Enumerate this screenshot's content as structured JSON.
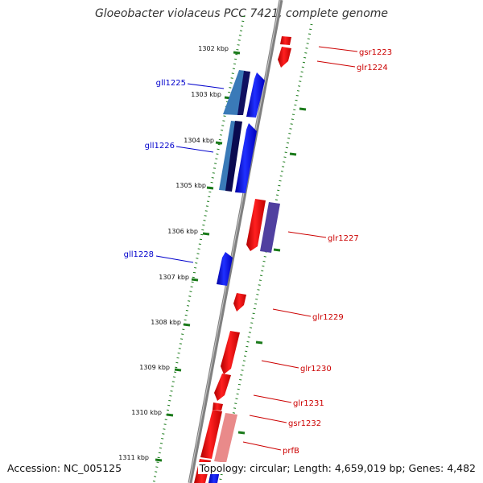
{
  "title": "Gloeobacter violaceus PCC 7421, complete genome",
  "footer": {
    "accession_label": "Accession:",
    "accession": "NC_005125",
    "topology": "Topology: circular",
    "length": "Length: 4,659,019 bp",
    "genes": "Genes: 4,482"
  },
  "colors": {
    "backbone": "#808080",
    "tick_green": "#1a7a1a",
    "forward_label": "#cc0000",
    "reverse_label": "#0000cc",
    "forward_gene": "#ff0000",
    "reverse_gene": "#0000ff"
  },
  "kbp_ticks": [
    "1302 kbp",
    "1303 kbp",
    "1304 kbp",
    "1305 kbp",
    "1306 kbp",
    "1307 kbp",
    "1308 kbp",
    "1309 kbp",
    "1310 kbp",
    "1311 kbp"
  ],
  "gene_labels_reverse": [
    "gll1225",
    "gll1226",
    "gll1228"
  ],
  "gene_labels_forward": [
    "gsr1223",
    "glr1224",
    "glr1227",
    "glr1229",
    "glr1230",
    "glr1231",
    "gsr1232",
    "prfB"
  ]
}
